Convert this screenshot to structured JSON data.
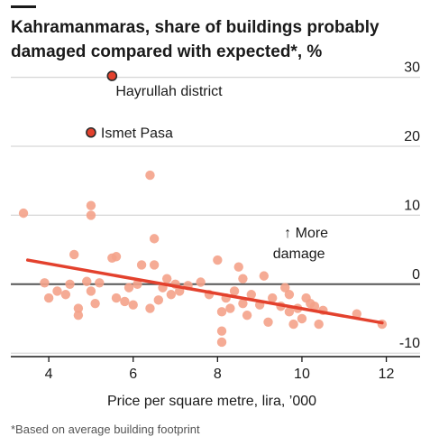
{
  "chart_data": {
    "type": "scatter",
    "title_lines": [
      "Kahramanmaras, share of buildings probably",
      "damaged compared with expected*, %"
    ],
    "xlabel": "Price per square metre, lira, ’000",
    "ylabel": "",
    "xlim": [
      3.1,
      12.8
    ],
    "ylim": [
      -10.5,
      31
    ],
    "x_ticks": [
      4,
      6,
      8,
      10,
      12
    ],
    "y_ticks": [
      30,
      20,
      10,
      0,
      -10
    ],
    "y_axis_side": "right",
    "grid": true,
    "footnote": "*Based on average building footprint",
    "annotation": {
      "arrow": "↑",
      "line1": "More",
      "line2": "damage",
      "x": 10.1,
      "y": 6.8
    },
    "labeled_points": [
      {
        "label": "Hayrullah district",
        "x": 5.5,
        "y": 30.2
      },
      {
        "label": "Ismet Pasa",
        "x": 5.0,
        "y": 22.0
      }
    ],
    "trend_line": {
      "x1": 3.5,
      "y1": 3.5,
      "x2": 11.9,
      "y2": -5.6
    },
    "points": [
      {
        "x": 3.4,
        "y": 10.3
      },
      {
        "x": 3.9,
        "y": 0.2
      },
      {
        "x": 4.0,
        "y": -2.0
      },
      {
        "x": 4.2,
        "y": -1.0
      },
      {
        "x": 4.4,
        "y": -1.5
      },
      {
        "x": 4.5,
        "y": 0.0
      },
      {
        "x": 4.6,
        "y": 4.3
      },
      {
        "x": 4.7,
        "y": -3.5
      },
      {
        "x": 4.7,
        "y": -4.5
      },
      {
        "x": 4.9,
        "y": 0.4
      },
      {
        "x": 5.0,
        "y": 11.4
      },
      {
        "x": 5.0,
        "y": 10.0
      },
      {
        "x": 5.0,
        "y": -1.0
      },
      {
        "x": 5.1,
        "y": -2.8
      },
      {
        "x": 5.2,
        "y": 0.2
      },
      {
        "x": 5.5,
        "y": 3.8
      },
      {
        "x": 5.6,
        "y": 4.0
      },
      {
        "x": 5.6,
        "y": -2.0
      },
      {
        "x": 5.8,
        "y": -2.5
      },
      {
        "x": 5.9,
        "y": -0.5
      },
      {
        "x": 6.0,
        "y": -3.0
      },
      {
        "x": 6.1,
        "y": 0.0
      },
      {
        "x": 6.2,
        "y": 2.8
      },
      {
        "x": 6.4,
        "y": 15.8
      },
      {
        "x": 6.4,
        "y": -3.5
      },
      {
        "x": 6.5,
        "y": 6.6
      },
      {
        "x": 6.5,
        "y": 2.8
      },
      {
        "x": 6.6,
        "y": -2.3
      },
      {
        "x": 6.7,
        "y": -0.5
      },
      {
        "x": 6.8,
        "y": 0.8
      },
      {
        "x": 6.9,
        "y": -1.5
      },
      {
        "x": 7.0,
        "y": 0.0
      },
      {
        "x": 7.1,
        "y": -1.0
      },
      {
        "x": 7.3,
        "y": -0.2
      },
      {
        "x": 7.6,
        "y": 0.3
      },
      {
        "x": 7.8,
        "y": -1.5
      },
      {
        "x": 8.0,
        "y": 3.5
      },
      {
        "x": 8.1,
        "y": -4.0
      },
      {
        "x": 8.1,
        "y": -6.8
      },
      {
        "x": 8.1,
        "y": -8.4
      },
      {
        "x": 8.2,
        "y": -2.0
      },
      {
        "x": 8.3,
        "y": -3.5
      },
      {
        "x": 8.4,
        "y": -1.0
      },
      {
        "x": 8.5,
        "y": 2.5
      },
      {
        "x": 8.6,
        "y": 0.8
      },
      {
        "x": 8.6,
        "y": -2.8
      },
      {
        "x": 8.7,
        "y": -4.5
      },
      {
        "x": 8.8,
        "y": -1.5
      },
      {
        "x": 9.0,
        "y": -3.0
      },
      {
        "x": 9.1,
        "y": 1.2
      },
      {
        "x": 9.2,
        "y": -5.5
      },
      {
        "x": 9.3,
        "y": -2.0
      },
      {
        "x": 9.5,
        "y": -3.2
      },
      {
        "x": 9.6,
        "y": -0.5
      },
      {
        "x": 9.7,
        "y": -1.5
      },
      {
        "x": 9.7,
        "y": -4.0
      },
      {
        "x": 9.8,
        "y": -5.8
      },
      {
        "x": 9.9,
        "y": -3.5
      },
      {
        "x": 10.0,
        "y": -5.0
      },
      {
        "x": 10.1,
        "y": -2.0
      },
      {
        "x": 10.2,
        "y": -2.8
      },
      {
        "x": 10.3,
        "y": -3.2
      },
      {
        "x": 10.4,
        "y": -5.8
      },
      {
        "x": 10.5,
        "y": -3.8
      },
      {
        "x": 11.3,
        "y": -4.3
      },
      {
        "x": 11.9,
        "y": -5.8
      }
    ],
    "colors": {
      "points": "#f4a28a",
      "trend": "#e3412d",
      "labeled_fill": "#e3412d",
      "labeled_stroke": "#2b2b2b",
      "zero_line": "#555555",
      "grid": "#d6d6d6",
      "axis": "#1a1a1a"
    }
  }
}
